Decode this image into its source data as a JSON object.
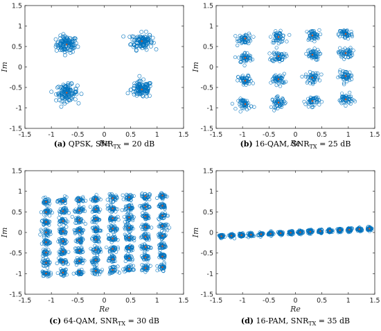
{
  "chart_data": [
    {
      "type": "scatter",
      "caption_letter": "(a)",
      "caption": "QPSK, SNR",
      "caption_sub": "TX",
      "caption_tail": " = 20 dB",
      "xlabel": "Re",
      "ylabel": "Im",
      "xlim": [
        -1.5,
        1.5
      ],
      "ylim": [
        -1.5,
        1.5
      ],
      "xticks": [
        -1.5,
        -1,
        -0.5,
        0,
        0.5,
        1,
        1.5
      ],
      "yticks": [
        -1.5,
        -1,
        -0.5,
        0,
        0.5,
        1,
        1.5
      ],
      "grid": false,
      "marker_color": "#0072BD",
      "centroid_color": "#D95319",
      "cluster_spread": 0.1,
      "centroids": [
        {
          "x": -0.71,
          "y": 0.55
        },
        {
          "x": 0.71,
          "y": 0.63
        },
        {
          "x": -0.71,
          "y": -0.63
        },
        {
          "x": 0.71,
          "y": -0.55
        }
      ]
    },
    {
      "type": "scatter",
      "caption_letter": "(b)",
      "caption": "16-QAM, SNR",
      "caption_sub": "TX",
      "caption_tail": " = 25 dB",
      "xlabel": "Re",
      "ylabel": "Im",
      "xlim": [
        -1.5,
        1.5
      ],
      "ylim": [
        -1.5,
        1.5
      ],
      "xticks": [
        -1.5,
        -1,
        -0.5,
        0,
        0.5,
        1,
        1.5
      ],
      "yticks": [
        -1.5,
        -1,
        -0.5,
        0,
        0.5,
        1,
        1.5
      ],
      "grid": false,
      "marker_color": "#0072BD",
      "centroid_color": "#D95319",
      "cluster_spread": 0.065,
      "grid_levels_x": [
        -0.95,
        -0.32,
        0.32,
        0.95
      ],
      "grid_levels_y": [
        0.75,
        0.28,
        -0.28,
        -0.85
      ],
      "tilt": 0.06
    },
    {
      "type": "scatter",
      "caption_letter": "(c)",
      "caption": "64-QAM, SNR",
      "caption_sub": "TX",
      "caption_tail": " = 30 dB",
      "xlabel": "Re",
      "ylabel": "Im",
      "xlim": [
        -1.5,
        1.5
      ],
      "ylim": [
        -1.5,
        1.5
      ],
      "xticks": [
        -1.5,
        -1,
        -0.5,
        0,
        0.5,
        1,
        1.5
      ],
      "yticks": [
        -1.5,
        -1,
        -0.5,
        0,
        0.5,
        1,
        1.5
      ],
      "grid": false,
      "marker_color": "#0072BD",
      "centroid_color": "#D95319",
      "cluster_spread": 0.04,
      "grid_levels_x": [
        -1.1,
        -0.78,
        -0.47,
        -0.16,
        0.16,
        0.47,
        0.78,
        1.1
      ],
      "grid_levels_y": [
        0.82,
        0.57,
        0.33,
        0.08,
        -0.16,
        -0.41,
        -0.66,
        -0.92
      ],
      "tilt": 0.07
    },
    {
      "type": "scatter",
      "caption_letter": "(d)",
      "caption": "16-PAM, SNR",
      "caption_sub": "TX",
      "caption_tail": " = 35 dB",
      "xlabel": "Re",
      "ylabel": "Im",
      "xlim": [
        -1.5,
        1.5
      ],
      "ylim": [
        -1.5,
        1.5
      ],
      "xticks": [
        -1.5,
        -1,
        -0.5,
        0,
        0.5,
        1,
        1.5
      ],
      "yticks": [
        -1.5,
        -1,
        -0.5,
        0,
        0.5,
        1,
        1.5
      ],
      "grid": false,
      "marker_color": "#0072BD",
      "centroid_color": "#D95319",
      "cluster_spread": 0.022,
      "pam_levels": [
        -1.4,
        -1.21,
        -1.02,
        -0.84,
        -0.65,
        -0.47,
        -0.28,
        -0.09,
        0.09,
        0.28,
        0.47,
        0.65,
        0.84,
        1.02,
        1.21,
        1.4
      ],
      "pam_slope": 0.065
    }
  ]
}
